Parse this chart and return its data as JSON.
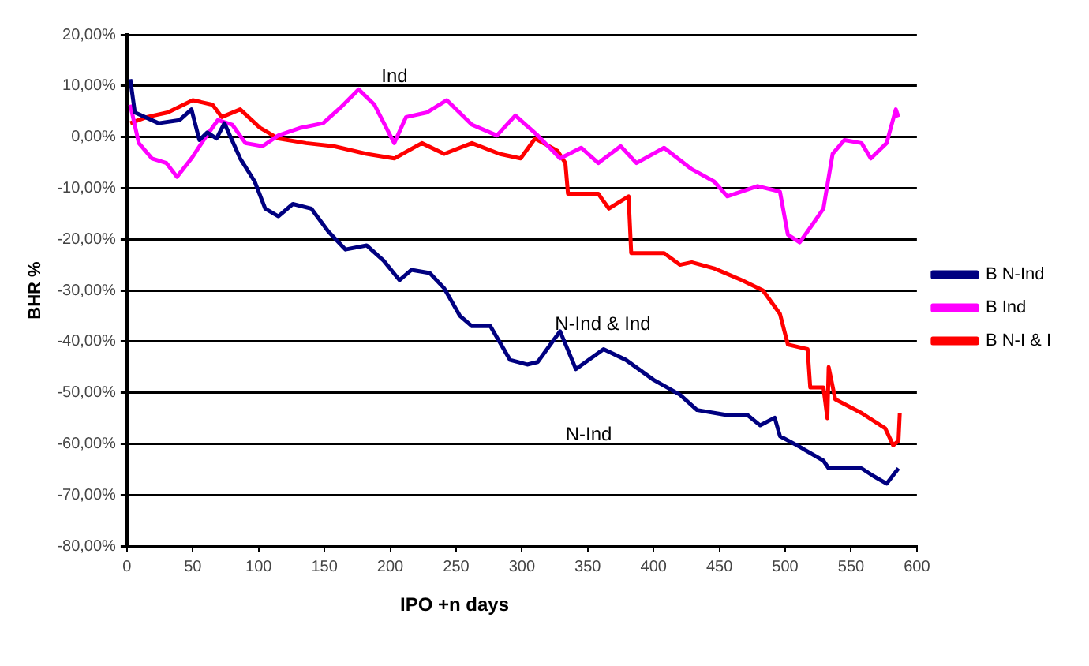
{
  "chart_data": {
    "type": "line",
    "xlabel": "IPO +n days",
    "ylabel": "BHR %",
    "xlim": [
      0,
      600
    ],
    "xticks": [
      0,
      50,
      100,
      150,
      200,
      250,
      300,
      350,
      400,
      450,
      500,
      550,
      600
    ],
    "ylim": [
      -80,
      20
    ],
    "yticks": [
      {
        "value": -80,
        "label": "-80,00%"
      },
      {
        "value": -70,
        "label": "-70,00%"
      },
      {
        "value": -60,
        "label": "-60,00%"
      },
      {
        "value": -50,
        "label": "-50,00%"
      },
      {
        "value": -40,
        "label": "-40,00%"
      },
      {
        "value": -30,
        "label": "-30,00%"
      },
      {
        "value": -20,
        "label": "-20,00%"
      },
      {
        "value": -10,
        "label": "-10,00%"
      },
      {
        "value": 0,
        "label": "0,00%"
      },
      {
        "value": 10,
        "label": "10,00%"
      },
      {
        "value": 20,
        "label": "20,00%"
      }
    ],
    "grid": "y",
    "legend": "right",
    "marker": "none",
    "line_style": "solid",
    "series": [
      {
        "name": "B N-Ind",
        "color": "#000080",
        "x": [
          2.5,
          6,
          24,
          40,
          49,
          55,
          61,
          68,
          74,
          86,
          97,
          105,
          115,
          126,
          140,
          153,
          166,
          182,
          195,
          207,
          216,
          230,
          241,
          253,
          262,
          276,
          291,
          304,
          312,
          329,
          341,
          362,
          379,
          400,
          420,
          433,
          454,
          471,
          481,
          492,
          496,
          509,
          529,
          533,
          558,
          567,
          577,
          586
        ],
        "values": [
          11.3,
          4.8,
          2.7,
          3.3,
          5.4,
          -0.6,
          0.9,
          -0.3,
          2.7,
          -4.2,
          -8.7,
          -14,
          -15.5,
          -13.1,
          -14,
          -18.5,
          -22,
          -21.2,
          -24.2,
          -28,
          -26,
          -26.6,
          -29.6,
          -35,
          -37,
          -37,
          -43.6,
          -44.5,
          -44,
          -38,
          -45.4,
          -41.5,
          -43.6,
          -47.5,
          -50.4,
          -53.4,
          -54.3,
          -54.3,
          -56.4,
          -54.9,
          -58.5,
          -60.3,
          -63.3,
          -64.8,
          -64.8,
          -66.3,
          -67.8,
          -64.8
        ]
      },
      {
        "name": "B Ind",
        "color": "#ff00ff",
        "x": [
          2.5,
          9,
          19,
          30,
          38,
          49,
          59,
          69,
          80,
          90,
          103,
          115,
          132,
          149,
          162,
          176,
          188,
          203,
          212,
          228,
          243,
          262,
          281,
          295,
          312,
          329,
          345,
          358,
          375,
          387,
          408,
          429,
          446,
          456,
          479,
          496,
          502,
          511,
          521,
          529,
          536,
          545,
          558,
          565,
          577,
          584,
          586
        ],
        "values": [
          6.3,
          -1.2,
          -4.2,
          -5.1,
          -7.8,
          -4.2,
          -0.3,
          3.3,
          2.4,
          -1.2,
          -1.8,
          0.3,
          1.8,
          2.7,
          5.7,
          9.3,
          6.3,
          -1.2,
          3.9,
          4.8,
          7.2,
          2.4,
          0.3,
          4.2,
          0.3,
          -4.2,
          -2.1,
          -5.1,
          -1.8,
          -5.1,
          -2.1,
          -6.3,
          -8.7,
          -11.6,
          -9.6,
          -10.7,
          -19.1,
          -20.6,
          -17,
          -14,
          -3.3,
          -0.6,
          -1.2,
          -4.2,
          -1.2,
          5.4,
          3.9
        ]
      },
      {
        "name": "B N-I & I",
        "color": "#ff0000",
        "x": [
          2.5,
          15,
          31,
          50,
          65,
          72,
          86,
          101,
          115,
          136,
          157,
          182,
          203,
          224,
          241,
          262,
          283,
          299,
          310,
          327,
          333,
          335,
          358,
          366,
          381,
          383,
          408,
          420,
          429,
          446,
          467,
          483,
          496,
          502,
          517,
          519,
          529,
          532,
          533,
          538,
          558,
          576,
          582,
          586,
          587
        ],
        "values": [
          2.7,
          3.9,
          4.8,
          7.2,
          6.3,
          3.9,
          5.4,
          1.8,
          -0.3,
          -1.2,
          -1.8,
          -3.3,
          -4.2,
          -1.2,
          -3.3,
          -1.2,
          -3.3,
          -4.2,
          -0.3,
          -2.7,
          -5.1,
          -11.1,
          -11.1,
          -14,
          -11.6,
          -22.7,
          -22.7,
          -25,
          -24.5,
          -25.7,
          -28,
          -30,
          -34.6,
          -40.6,
          -41.5,
          -49,
          -49,
          -55,
          -45,
          -51.3,
          -54,
          -57,
          -60.3,
          -59.4,
          -54
        ]
      }
    ],
    "annotations": [
      "Ind",
      "N-Ind & Ind",
      "N-Ind"
    ]
  }
}
